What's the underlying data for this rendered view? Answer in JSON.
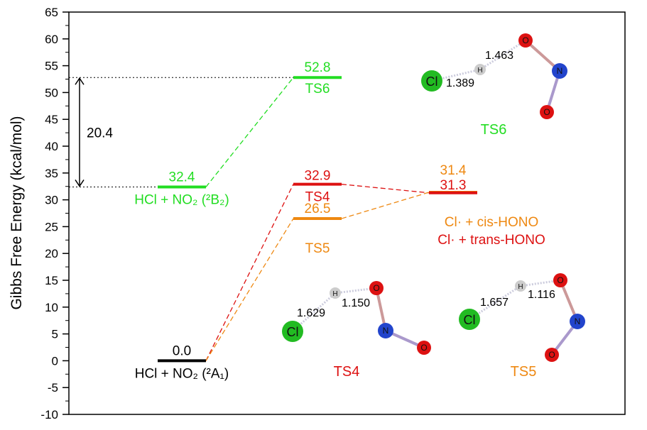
{
  "chart_data": {
    "type": "energy-level-diagram",
    "ylabel": "Gibbs Free Energy (kcal/mol)",
    "ylim": [
      -10,
      65
    ],
    "yticks": [
      -10,
      -5,
      0,
      5,
      10,
      15,
      20,
      25,
      30,
      35,
      40,
      45,
      50,
      55,
      60,
      65
    ],
    "levels": [
      {
        "id": "r",
        "col": 0,
        "value": 0.0,
        "label": "0.0",
        "name": "HCl + NO₂ (²A₁)",
        "color": "#000000"
      },
      {
        "id": "r2",
        "col": 0,
        "value": 32.4,
        "label": "32.4",
        "name": "HCl + NO₂ (²B₂)",
        "color": "#22dd22"
      },
      {
        "id": "ts6",
        "col": 1,
        "value": 52.8,
        "label": "52.8",
        "name": "TS6",
        "color": "#22dd22"
      },
      {
        "id": "ts4",
        "col": 1,
        "value": 32.9,
        "label": "32.9",
        "name": "TS4",
        "color": "#dd1111"
      },
      {
        "id": "ts5",
        "col": 1,
        "value": 26.5,
        "label": "26.5",
        "name": "TS5",
        "color": "#ee8811"
      },
      {
        "id": "p5",
        "col": 2,
        "value": 31.4,
        "label": "31.4",
        "name": "Cl· + cis-HONO",
        "color": "#ee8811"
      },
      {
        "id": "p4",
        "col": 2,
        "value": 31.3,
        "label": "31.3",
        "name": "Cl· + trans-HONO",
        "color": "#dd1111"
      }
    ],
    "connections": [
      [
        "r",
        "ts4",
        "#dd1111"
      ],
      [
        "r",
        "ts5",
        "#ee8811"
      ],
      [
        "r2",
        "ts6",
        "#22dd22"
      ],
      [
        "ts4",
        "p4",
        "#dd1111"
      ],
      [
        "ts5",
        "p5",
        "#ee8811"
      ]
    ],
    "annotation": {
      "label": "20.4",
      "from": 32.4,
      "to": 52.8
    }
  },
  "structures": {
    "ts6": {
      "title": "TS6",
      "d1": "1.389",
      "d2": "1.463"
    },
    "ts4": {
      "title": "TS4",
      "d1": "1.629",
      "d2": "1.150"
    },
    "ts5": {
      "title": "TS5",
      "d1": "1.657",
      "d2": "1.116"
    },
    "atoms": {
      "cl": "Cl",
      "h": "H",
      "n": "N",
      "o": "O"
    }
  }
}
